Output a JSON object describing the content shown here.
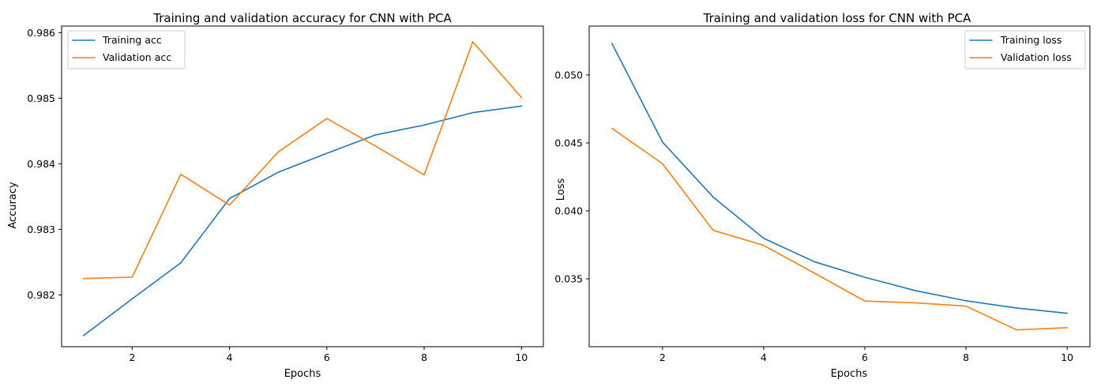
{
  "chart_data": [
    {
      "type": "line",
      "title": "Training and validation accuracy for CNN with PCA",
      "xlabel": "Epochs",
      "ylabel": "Accuracy",
      "x": [
        1,
        2,
        3,
        4,
        5,
        6,
        7,
        8,
        9,
        10
      ],
      "xlim": [
        0.55,
        10.45
      ],
      "ylim": [
        0.98121,
        0.9861
      ],
      "xticks": [
        2,
        4,
        6,
        8,
        10
      ],
      "yticks": [
        0.982,
        0.983,
        0.984,
        0.985,
        0.986
      ],
      "xtick_labels": [
        "2",
        "4",
        "6",
        "8",
        "10"
      ],
      "ytick_labels": [
        "0.982",
        "0.983",
        "0.984",
        "0.985",
        "0.986"
      ],
      "legend_position": "upper-left",
      "series": [
        {
          "name": "Training acc",
          "color": "#1f77b4",
          "values": [
            0.98138,
            0.98194,
            0.98249,
            0.98347,
            0.98387,
            0.98416,
            0.98444,
            0.98459,
            0.98478,
            0.98488
          ]
        },
        {
          "name": "Validation acc",
          "color": "#ff7f0e",
          "values": [
            0.98225,
            0.98227,
            0.98384,
            0.98337,
            0.98418,
            0.98469,
            0.98427,
            0.98383,
            0.98586,
            0.98501
          ]
        }
      ]
    },
    {
      "type": "line",
      "title": "Training and validation loss for CNN with PCA",
      "xlabel": "Epochs",
      "ylabel": "Loss",
      "x": [
        1,
        2,
        3,
        4,
        5,
        6,
        7,
        8,
        9,
        10
      ],
      "xlim": [
        0.55,
        10.45
      ],
      "ylim": [
        0.03,
        0.0536
      ],
      "xticks": [
        2,
        4,
        6,
        8,
        10
      ],
      "yticks": [
        0.035,
        0.04,
        0.045,
        0.05
      ],
      "xtick_labels": [
        "2",
        "4",
        "6",
        "8",
        "10"
      ],
      "ytick_labels": [
        "0.035",
        "0.040",
        "0.045",
        "0.050"
      ],
      "legend_position": "upper-right",
      "series": [
        {
          "name": "Training loss",
          "color": "#1f77b4",
          "values": [
            0.05232,
            0.04506,
            0.04102,
            0.03798,
            0.03626,
            0.03511,
            0.03413,
            0.03338,
            0.03285,
            0.03246
          ]
        },
        {
          "name": "Validation loss",
          "color": "#ff7f0e",
          "values": [
            0.04607,
            0.04347,
            0.03857,
            0.03746,
            0.03542,
            0.03336,
            0.03323,
            0.03299,
            0.03124,
            0.0314
          ]
        }
      ]
    }
  ]
}
